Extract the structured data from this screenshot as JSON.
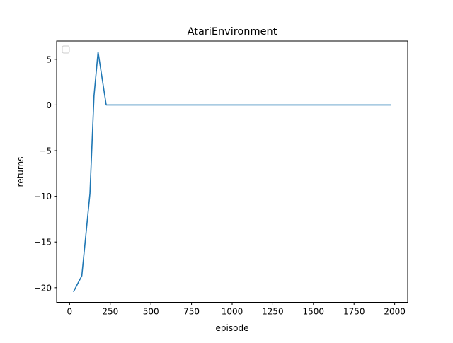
{
  "chart_data": {
    "type": "line",
    "title": "AtariEnvironment",
    "xlabel": "episode",
    "ylabel": "returns",
    "xlim": [
      -80,
      2080
    ],
    "ylim": [
      -21.6,
      7.0
    ],
    "xticks": [
      0,
      250,
      500,
      750,
      1000,
      1250,
      1500,
      1750,
      2000
    ],
    "yticks": [
      -20,
      -15,
      -10,
      -5,
      0,
      5
    ],
    "grid": false,
    "legend": "top-left, empty",
    "series": [
      {
        "color": "#1f77b4",
        "x": [
          25,
          75,
          125,
          150,
          175,
          225,
          275,
          325,
          375,
          425,
          475,
          525,
          575,
          625,
          675,
          725,
          775,
          825,
          875,
          925,
          975,
          1025,
          1075,
          1125,
          1175,
          1225,
          1275,
          1325,
          1375,
          1425,
          1475,
          1525,
          1575,
          1625,
          1675,
          1725,
          1775,
          1825,
          1875,
          1925,
          1975
        ],
        "y": [
          -20.4,
          -18.7,
          -9.7,
          1.0,
          5.8,
          0,
          0,
          0,
          0,
          0,
          0,
          0,
          0,
          0,
          0,
          0,
          0,
          0,
          0,
          0,
          0,
          0,
          0,
          0,
          0,
          0,
          0,
          0,
          0,
          0,
          0,
          0,
          0,
          0,
          0,
          0,
          0,
          0,
          0,
          0,
          0
        ]
      }
    ]
  }
}
